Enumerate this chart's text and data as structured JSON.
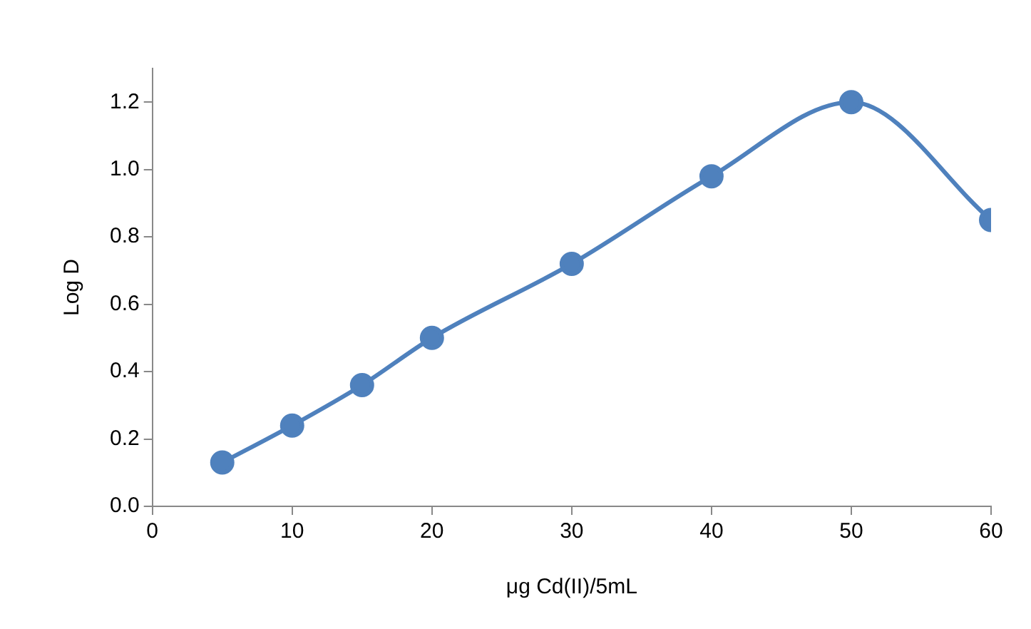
{
  "chart_data": {
    "type": "line",
    "xlabel": "μg Cd(II)/5mL",
    "ylabel": "Log D",
    "x": [
      5,
      10,
      15,
      20,
      30,
      40,
      50,
      60
    ],
    "series": [
      {
        "color": "#4f81bd",
        "values": [
          0.13,
          0.24,
          0.36,
          0.5,
          0.72,
          0.98,
          1.2,
          0.85
        ]
      }
    ],
    "xlim": [
      0,
      60
    ],
    "xticks": [
      0,
      10,
      20,
      30,
      40,
      50,
      60
    ],
    "ylim": [
      0,
      1.3
    ],
    "yticks": [
      {
        "value": 0,
        "label": "0.0"
      },
      {
        "value": 0.2,
        "label": "0.2"
      },
      {
        "value": 0.4,
        "label": "0.4"
      },
      {
        "value": 0.6,
        "label": "0.6"
      },
      {
        "value": 0.8,
        "label": "0.8"
      },
      {
        "value": 1,
        "label": "1.0"
      },
      {
        "value": 1.2,
        "label": "1.2"
      }
    ],
    "grid": false,
    "legend": false,
    "marker": "circle",
    "line_style": "solid"
  }
}
